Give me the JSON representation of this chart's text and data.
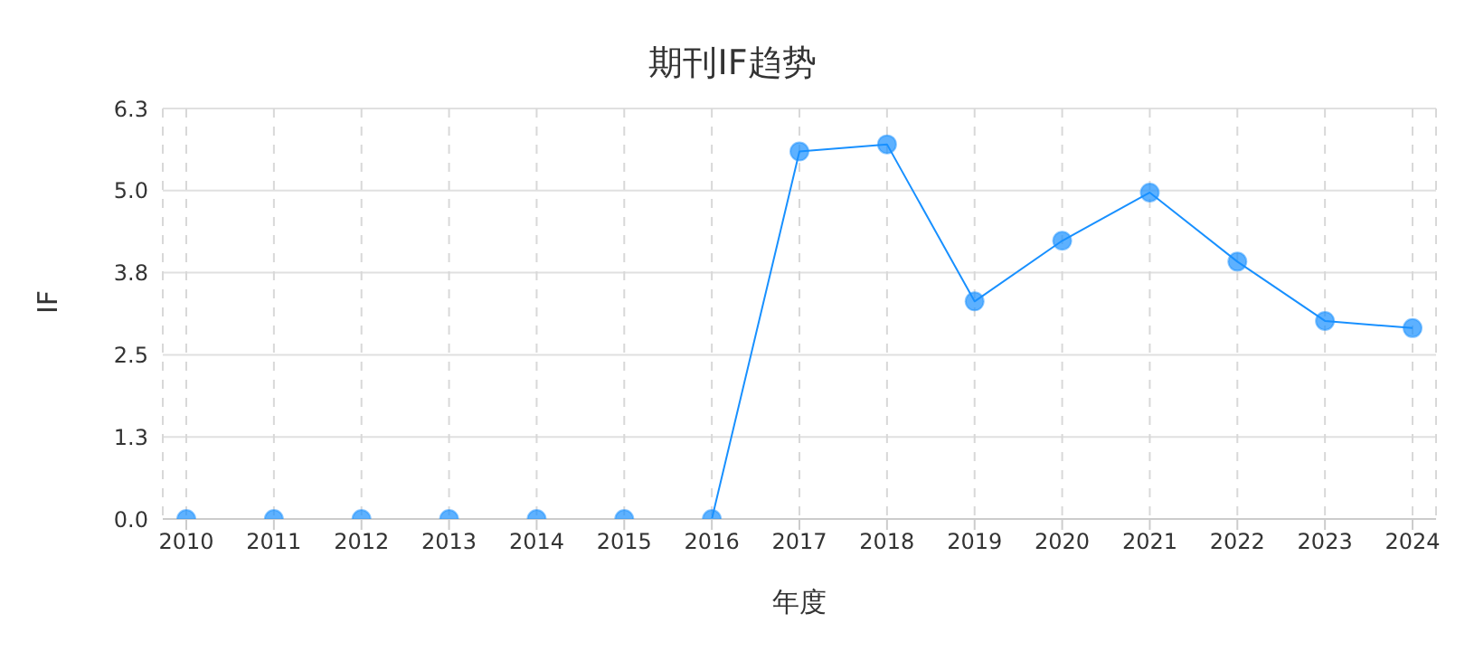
{
  "chart_data": {
    "type": "line",
    "title": "期刊IF趋势",
    "xlabel": "年度",
    "ylabel": "IF",
    "categories": [
      "2010",
      "2011",
      "2012",
      "2013",
      "2014",
      "2015",
      "2016",
      "2017",
      "2018",
      "2019",
      "2020",
      "2021",
      "2022",
      "2023",
      "2024"
    ],
    "series": [
      {
        "color": "#1890ff",
        "values": [
          0,
          0,
          0,
          0,
          0,
          0,
          0,
          5.64,
          5.75,
          3.34,
          4.27,
          5.01,
          3.95,
          3.04,
          2.93
        ]
      }
    ],
    "ylim": [
      0,
      6.3
    ],
    "yticks": [
      {
        "value": 0,
        "label": "0.0"
      },
      {
        "value": 1.26,
        "label": "1.3"
      },
      {
        "value": 2.52,
        "label": "2.5"
      },
      {
        "value": 3.78,
        "label": "3.8"
      },
      {
        "value": 5.04,
        "label": "5.0"
      },
      {
        "value": 6.3,
        "label": "6.3"
      }
    ],
    "grid": true,
    "marker": "circle",
    "line_style": "solid"
  }
}
